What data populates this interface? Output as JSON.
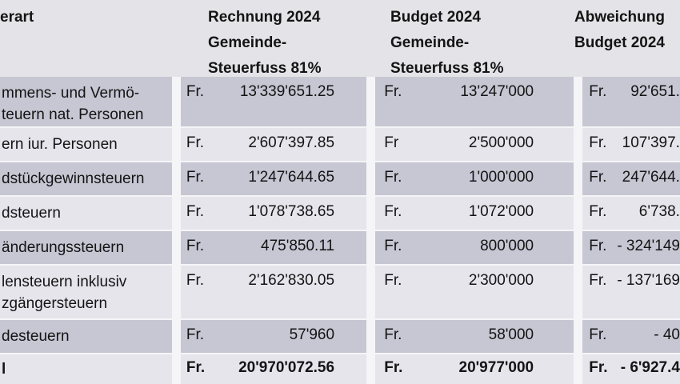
{
  "table": {
    "header": {
      "cols": [
        {
          "lines": [
            "erart"
          ]
        },
        {
          "lines": [
            "Rechnung 2024",
            "Gemeinde-",
            "Steuerfuss 81%"
          ]
        },
        {
          "lines": [
            "Budget 2024",
            "Gemeinde-",
            "Steuerfuss 81%"
          ]
        },
        {
          "lines": [
            "Abweichung",
            "Budget 2024"
          ]
        }
      ]
    },
    "rows": [
      {
        "name_lines": [
          "mmens- und Vermö-",
          "teuern nat. Personen"
        ],
        "cells": {
          "rechnung": {
            "prefix": "Fr.",
            "value": "13'339'651.25"
          },
          "budget": {
            "prefix": "Fr.",
            "value": "13'247'000"
          },
          "abweichung": {
            "prefix": "Fr.",
            "value": "92'651."
          }
        }
      },
      {
        "name_lines": [
          "ern iur. Personen"
        ],
        "cells": {
          "rechnung": {
            "prefix": "Fr.",
            "value": "2'607'397.85"
          },
          "budget": {
            "prefix": "Fr",
            "value": "2'500'000"
          },
          "abweichung": {
            "prefix": "Fr.",
            "value": "107'397."
          }
        }
      },
      {
        "name_lines": [
          "dstückgewinnsteuern"
        ],
        "cells": {
          "rechnung": {
            "prefix": "Fr.",
            "value": "1'247'644.65"
          },
          "budget": {
            "prefix": "Fr.",
            "value": "1'000'000"
          },
          "abweichung": {
            "prefix": "Fr.",
            "value": "247'644."
          }
        }
      },
      {
        "name_lines": [
          "dsteuern"
        ],
        "cells": {
          "rechnung": {
            "prefix": "Fr.",
            "value": "1'078'738.65"
          },
          "budget": {
            "prefix": "Fr.",
            "value": "1'072'000"
          },
          "abweichung": {
            "prefix": "Fr.",
            "value": "6'738."
          }
        }
      },
      {
        "name_lines": [
          "änderungssteuern"
        ],
        "cells": {
          "rechnung": {
            "prefix": "Fr.",
            "value": "475'850.11"
          },
          "budget": {
            "prefix": "Fr.",
            "value": "800'000"
          },
          "abweichung": {
            "prefix": "Fr.",
            "value": "- 324'149"
          }
        }
      },
      {
        "name_lines": [
          "lensteuern inklusiv",
          "zgängersteuern"
        ],
        "cells": {
          "rechnung": {
            "prefix": "Fr.",
            "value": "2'162'830.05"
          },
          "budget": {
            "prefix": "Fr.",
            "value": "2'300'000"
          },
          "abweichung": {
            "prefix": "Fr.",
            "value": "- 137'169"
          }
        }
      },
      {
        "name_lines": [
          "desteuern"
        ],
        "cells": {
          "rechnung": {
            "prefix": "Fr.",
            "value": "57'960"
          },
          "budget": {
            "prefix": "Fr.",
            "value": "58'000"
          },
          "abweichung": {
            "prefix": "Fr.",
            "value": "- 40"
          }
        }
      },
      {
        "name_lines": [
          "l"
        ],
        "cells": {
          "rechnung": {
            "prefix": "Fr.",
            "value": "20'970'072.56"
          },
          "budget": {
            "prefix": "Fr.",
            "value": "20'977'000"
          },
          "abweichung": {
            "prefix": "Fr.",
            "value": "- 6'927.4"
          }
        }
      }
    ]
  },
  "colors": {
    "page_bg": "#e3e3e8",
    "row_dark": "#c7c6d3",
    "row_light": "#e6e5ec",
    "separator": "#f5f5f8",
    "text": "#141414"
  }
}
